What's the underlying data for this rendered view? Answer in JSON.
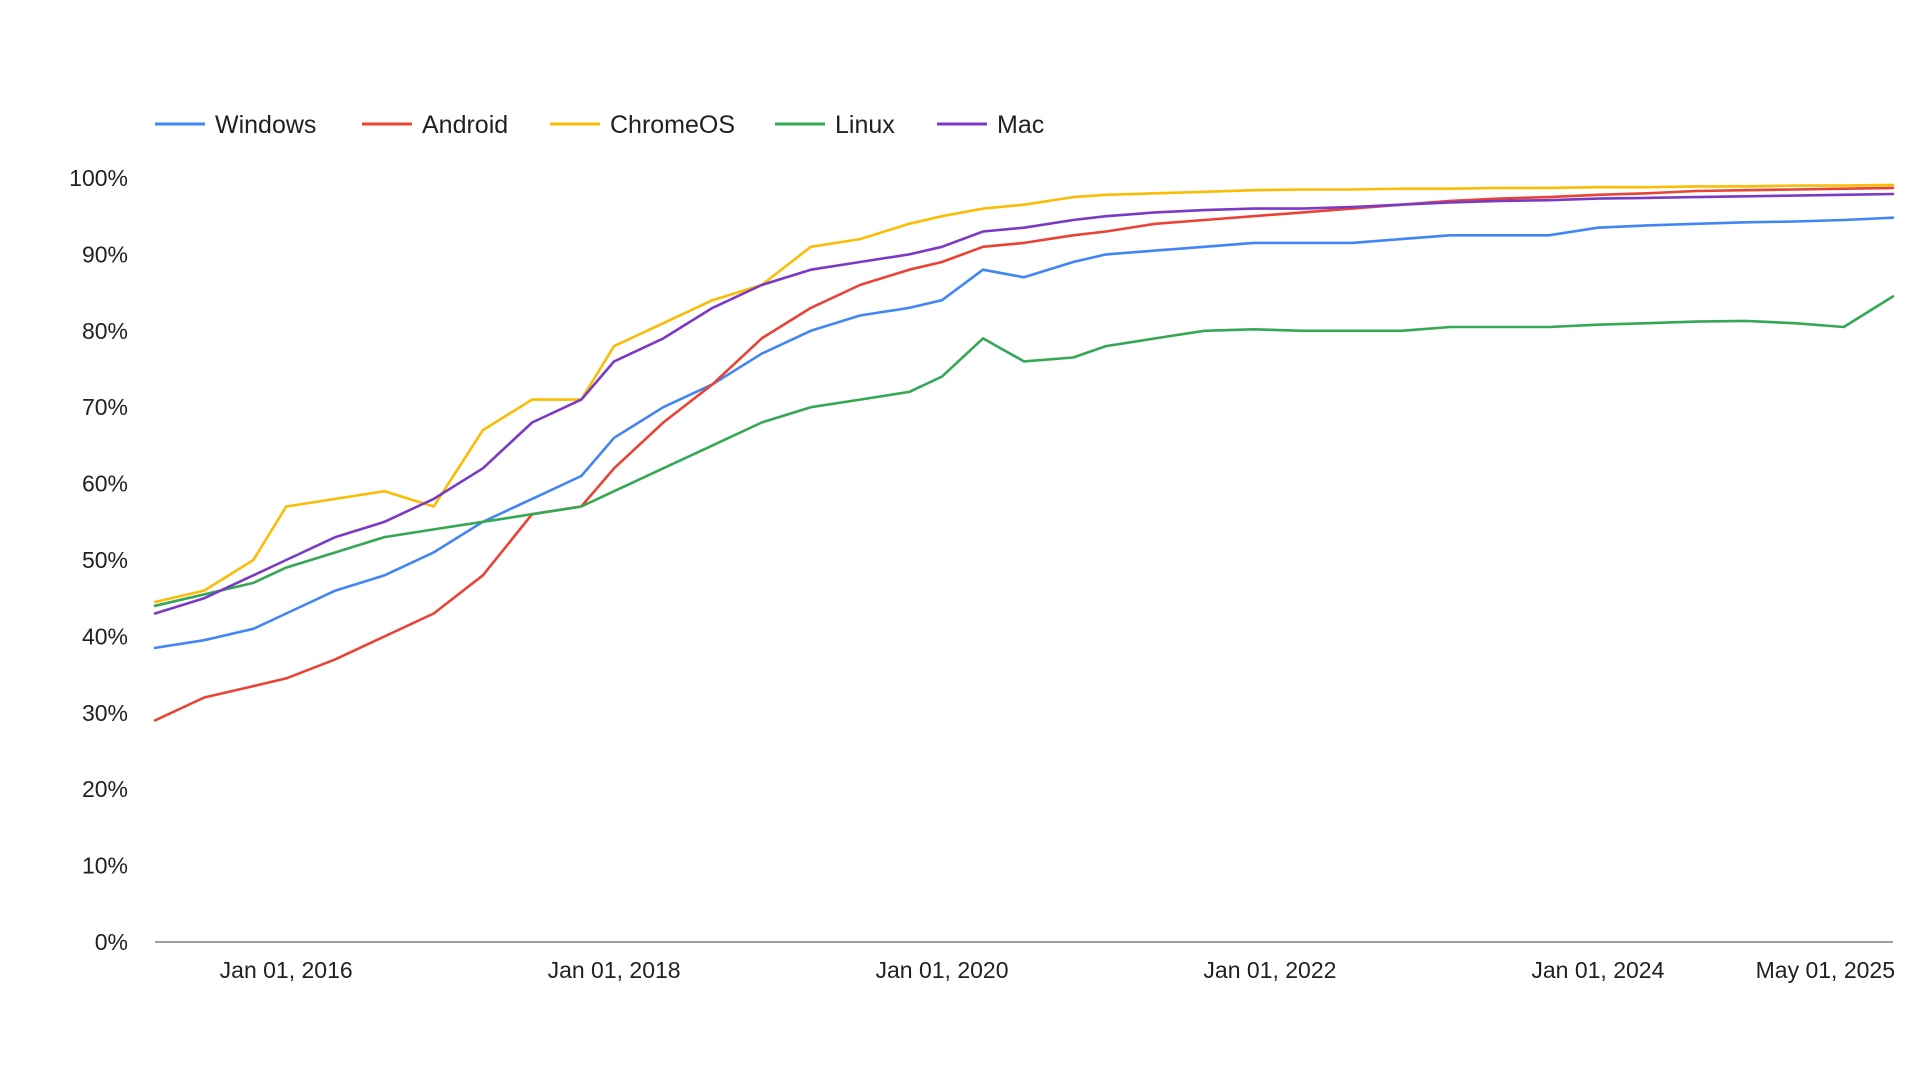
{
  "chart_data": {
    "type": "line",
    "title": "",
    "xlabel": "",
    "ylabel": "",
    "legend_position": "top-left",
    "grid": false,
    "ylim": [
      0,
      100
    ],
    "xlim": [
      2015.2,
      2025.8
    ],
    "y_ticks": [
      0,
      10,
      20,
      30,
      40,
      50,
      60,
      70,
      80,
      90,
      100
    ],
    "y_tick_labels": [
      "0%",
      "10%",
      "20%",
      "30%",
      "40%",
      "50%",
      "60%",
      "70%",
      "80%",
      "90%",
      "100%"
    ],
    "x_ticks": [
      {
        "value": 2016.0,
        "label": "Jan 01, 2016"
      },
      {
        "value": 2018.0,
        "label": "Jan 01, 2018"
      },
      {
        "value": 2020.0,
        "label": "Jan 01, 2020"
      },
      {
        "value": 2022.0,
        "label": "Jan 01, 2022"
      },
      {
        "value": 2024.0,
        "label": "Jan 01, 2024"
      },
      {
        "value": 2025.33,
        "label": "May 01, 2025"
      }
    ],
    "x": [
      2015.2,
      2015.5,
      2015.8,
      2016.0,
      2016.3,
      2016.6,
      2016.9,
      2017.2,
      2017.5,
      2017.8,
      2018.0,
      2018.3,
      2018.6,
      2018.9,
      2019.2,
      2019.5,
      2019.8,
      2020.0,
      2020.25,
      2020.5,
      2020.8,
      2021.0,
      2021.3,
      2021.6,
      2021.9,
      2022.2,
      2022.5,
      2022.8,
      2023.1,
      2023.4,
      2023.7,
      2024.0,
      2024.3,
      2024.6,
      2024.9,
      2025.2,
      2025.5,
      2025.8
    ],
    "series": [
      {
        "name": "Windows",
        "color": "#4285f4",
        "values": [
          38.5,
          39.5,
          41,
          43,
          46,
          48,
          51,
          55,
          58,
          61,
          66,
          70,
          73,
          77,
          80,
          82,
          83,
          84,
          88,
          87,
          89,
          90,
          90.5,
          91,
          91.5,
          91.5,
          91.5,
          92,
          92.5,
          92.5,
          92.5,
          93.5,
          93.8,
          94,
          94.2,
          94.3,
          94.5,
          94.8
        ]
      },
      {
        "name": "Android",
        "color": "#ea4335",
        "values": [
          29,
          32,
          33.5,
          34.5,
          37,
          40,
          43,
          48,
          56,
          57,
          62,
          68,
          73,
          79,
          83,
          86,
          88,
          89,
          91,
          91.5,
          92.5,
          93,
          94,
          94.5,
          95,
          95.5,
          96,
          96.5,
          97,
          97.3,
          97.5,
          97.8,
          98,
          98.3,
          98.4,
          98.5,
          98.6,
          98.7
        ]
      },
      {
        "name": "ChromeOS",
        "color": "#fbbc04",
        "values": [
          44.5,
          46,
          50,
          57,
          58,
          59,
          57,
          67,
          71,
          71,
          78,
          81,
          84,
          86,
          91,
          92,
          94,
          95,
          96,
          96.5,
          97.5,
          97.8,
          98,
          98.2,
          98.4,
          98.5,
          98.5,
          98.6,
          98.6,
          98.7,
          98.7,
          98.8,
          98.8,
          98.9,
          98.9,
          99,
          99,
          99.1
        ]
      },
      {
        "name": "Linux",
        "color": "#34a853",
        "values": [
          44,
          45.5,
          47,
          49,
          51,
          53,
          54,
          55,
          56,
          57,
          59,
          62,
          65,
          68,
          70,
          71,
          72,
          74,
          79,
          76,
          76.5,
          78,
          79,
          80,
          80.2,
          80,
          80,
          80,
          80.5,
          80.5,
          80.5,
          80.8,
          81,
          81.2,
          81.3,
          81,
          80.5,
          84.5
        ]
      },
      {
        "name": "Mac",
        "color": "#7b3ac6",
        "values": [
          43,
          45,
          48,
          50,
          53,
          55,
          58,
          62,
          68,
          71,
          76,
          79,
          83,
          86,
          88,
          89,
          90,
          91,
          93,
          93.5,
          94.5,
          95,
          95.5,
          95.8,
          96,
          96,
          96.2,
          96.5,
          96.8,
          97,
          97.1,
          97.3,
          97.4,
          97.5,
          97.6,
          97.7,
          97.8,
          97.9
        ]
      }
    ]
  }
}
